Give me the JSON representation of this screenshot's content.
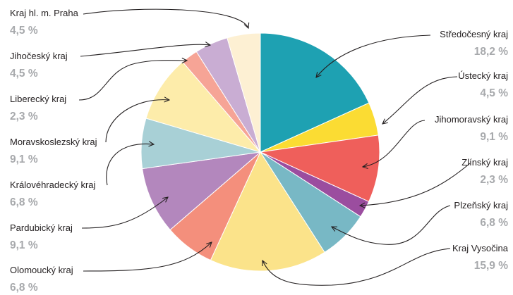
{
  "chart_data": {
    "type": "pie",
    "slices": [
      {
        "label": "Středočesný kraj",
        "value": 18.2,
        "display": "18,2 %",
        "color": "#1ea1b2"
      },
      {
        "label": "Ústecký kraj",
        "value": 4.5,
        "display": "4,5 %",
        "color": "#fbdc33"
      },
      {
        "label": "Jihomoravský kraj",
        "value": 9.1,
        "display": "9,1 %",
        "color": "#ef5f5b"
      },
      {
        "label": "Zlínský kraj",
        "value": 2.3,
        "display": "2,3 %",
        "color": "#9b4d9f"
      },
      {
        "label": "Plzeňský kraj",
        "value": 6.8,
        "display": "6,8 %",
        "color": "#78b8c5"
      },
      {
        "label": "Kraj Vysočina",
        "value": 15.9,
        "display": "15,9 %",
        "color": "#fbe38a"
      },
      {
        "label": "Olomoucký kraj",
        "value": 6.8,
        "display": "6,8 %",
        "color": "#f48f7c"
      },
      {
        "label": "Pardubický kraj",
        "value": 9.1,
        "display": "9,1 %",
        "color": "#b387bd"
      },
      {
        "label": "Královéhradecký kraj",
        "value": 6.8,
        "display": "6,8 %",
        "color": "#a8d0d6"
      },
      {
        "label": "Moravskoslezský kraj",
        "value": 9.1,
        "display": "9,1 %",
        "color": "#fdecaa"
      },
      {
        "label": "Liberecký kraj",
        "value": 2.3,
        "display": "2,3 %",
        "color": "#f6a496"
      },
      {
        "label": "Jihočeský kraj",
        "value": 4.5,
        "display": "4,5 %",
        "color": "#c9add3"
      },
      {
        "label": "Kraj hl. m. Praha",
        "value": 4.5,
        "display": "4,5 %",
        "color": "#fdf0d3"
      }
    ]
  }
}
